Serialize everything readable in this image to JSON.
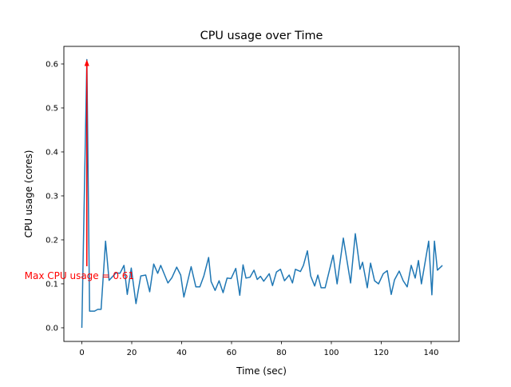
{
  "chart_data": {
    "type": "line",
    "title": "CPU usage over Time",
    "xlabel": "Time (sec)",
    "ylabel": "CPU usage (cores)",
    "xlim": [
      -7.2,
      151.2
    ],
    "ylim": [
      -0.031,
      0.64
    ],
    "xticks": [
      0,
      20,
      40,
      60,
      80,
      100,
      120,
      140
    ],
    "yticks": [
      0.0,
      0.1,
      0.2,
      0.3,
      0.4,
      0.5,
      0.6
    ],
    "ytick_labels": [
      "0.0",
      "0.1",
      "0.2",
      "0.3",
      "0.4",
      "0.5",
      "0.6"
    ],
    "grid": false,
    "line_color": "#1f77b4",
    "series": [
      {
        "x": [
          0,
          2,
          3.1,
          5.1,
          6.4,
          7.7,
          9.5,
          10.9,
          13.7,
          15.3,
          16.9,
          18.2,
          19.8,
          21.7,
          23.6,
          25.6,
          27.2,
          28.8,
          30.4,
          31.6,
          34.5,
          36.1,
          38.0,
          39.6,
          40.9,
          43.8,
          45.7,
          47.3,
          48.9,
          50.8,
          51.8,
          53.4,
          55.0,
          56.6,
          58.2,
          59.8,
          61.7,
          63.3,
          64.6,
          65.8,
          67.4,
          69.0,
          70.3,
          71.6,
          72.9,
          75.1,
          76.4,
          78.0,
          79.6,
          81.2,
          83.1,
          84.4,
          85.6,
          87.6,
          88.8,
          90.4,
          91.7,
          93.3,
          94.6,
          95.9,
          97.5,
          100.7,
          102.3,
          104.8,
          107.7,
          109.6,
          111.5,
          112.5,
          114.4,
          115.7,
          117.3,
          118.9,
          120.8,
          122.4,
          124.0,
          125.3,
          127.2,
          128.8,
          130.4,
          132.0,
          133.6,
          134.9,
          136.1,
          139.0,
          140.3,
          141.3,
          142.5,
          144.5
        ],
        "y": [
          0,
          0.61,
          0.038,
          0.038,
          0.042,
          0.042,
          0.197,
          0.108,
          0.125,
          0.124,
          0.142,
          0.076,
          0.136,
          0.055,
          0.118,
          0.12,
          0.082,
          0.145,
          0.124,
          0.142,
          0.102,
          0.114,
          0.138,
          0.12,
          0.07,
          0.139,
          0.093,
          0.093,
          0.118,
          0.16,
          0.105,
          0.085,
          0.107,
          0.08,
          0.113,
          0.112,
          0.135,
          0.074,
          0.143,
          0.113,
          0.115,
          0.131,
          0.11,
          0.117,
          0.106,
          0.123,
          0.096,
          0.127,
          0.133,
          0.107,
          0.12,
          0.102,
          0.133,
          0.128,
          0.142,
          0.175,
          0.118,
          0.095,
          0.12,
          0.091,
          0.091,
          0.165,
          0.1,
          0.204,
          0.102,
          0.214,
          0.133,
          0.149,
          0.091,
          0.147,
          0.107,
          0.1,
          0.123,
          0.13,
          0.076,
          0.109,
          0.129,
          0.107,
          0.093,
          0.142,
          0.113,
          0.153,
          0.1,
          0.197,
          0.075,
          0.197,
          0.131,
          0.142
        ]
      }
    ],
    "annotation": {
      "text": "Max CPU usage = 0.61",
      "color": "#ff0000",
      "point": [
        2,
        0.61
      ],
      "arrow_from": [
        2,
        0.14
      ],
      "text_at": [
        -23,
        0.118
      ]
    }
  }
}
